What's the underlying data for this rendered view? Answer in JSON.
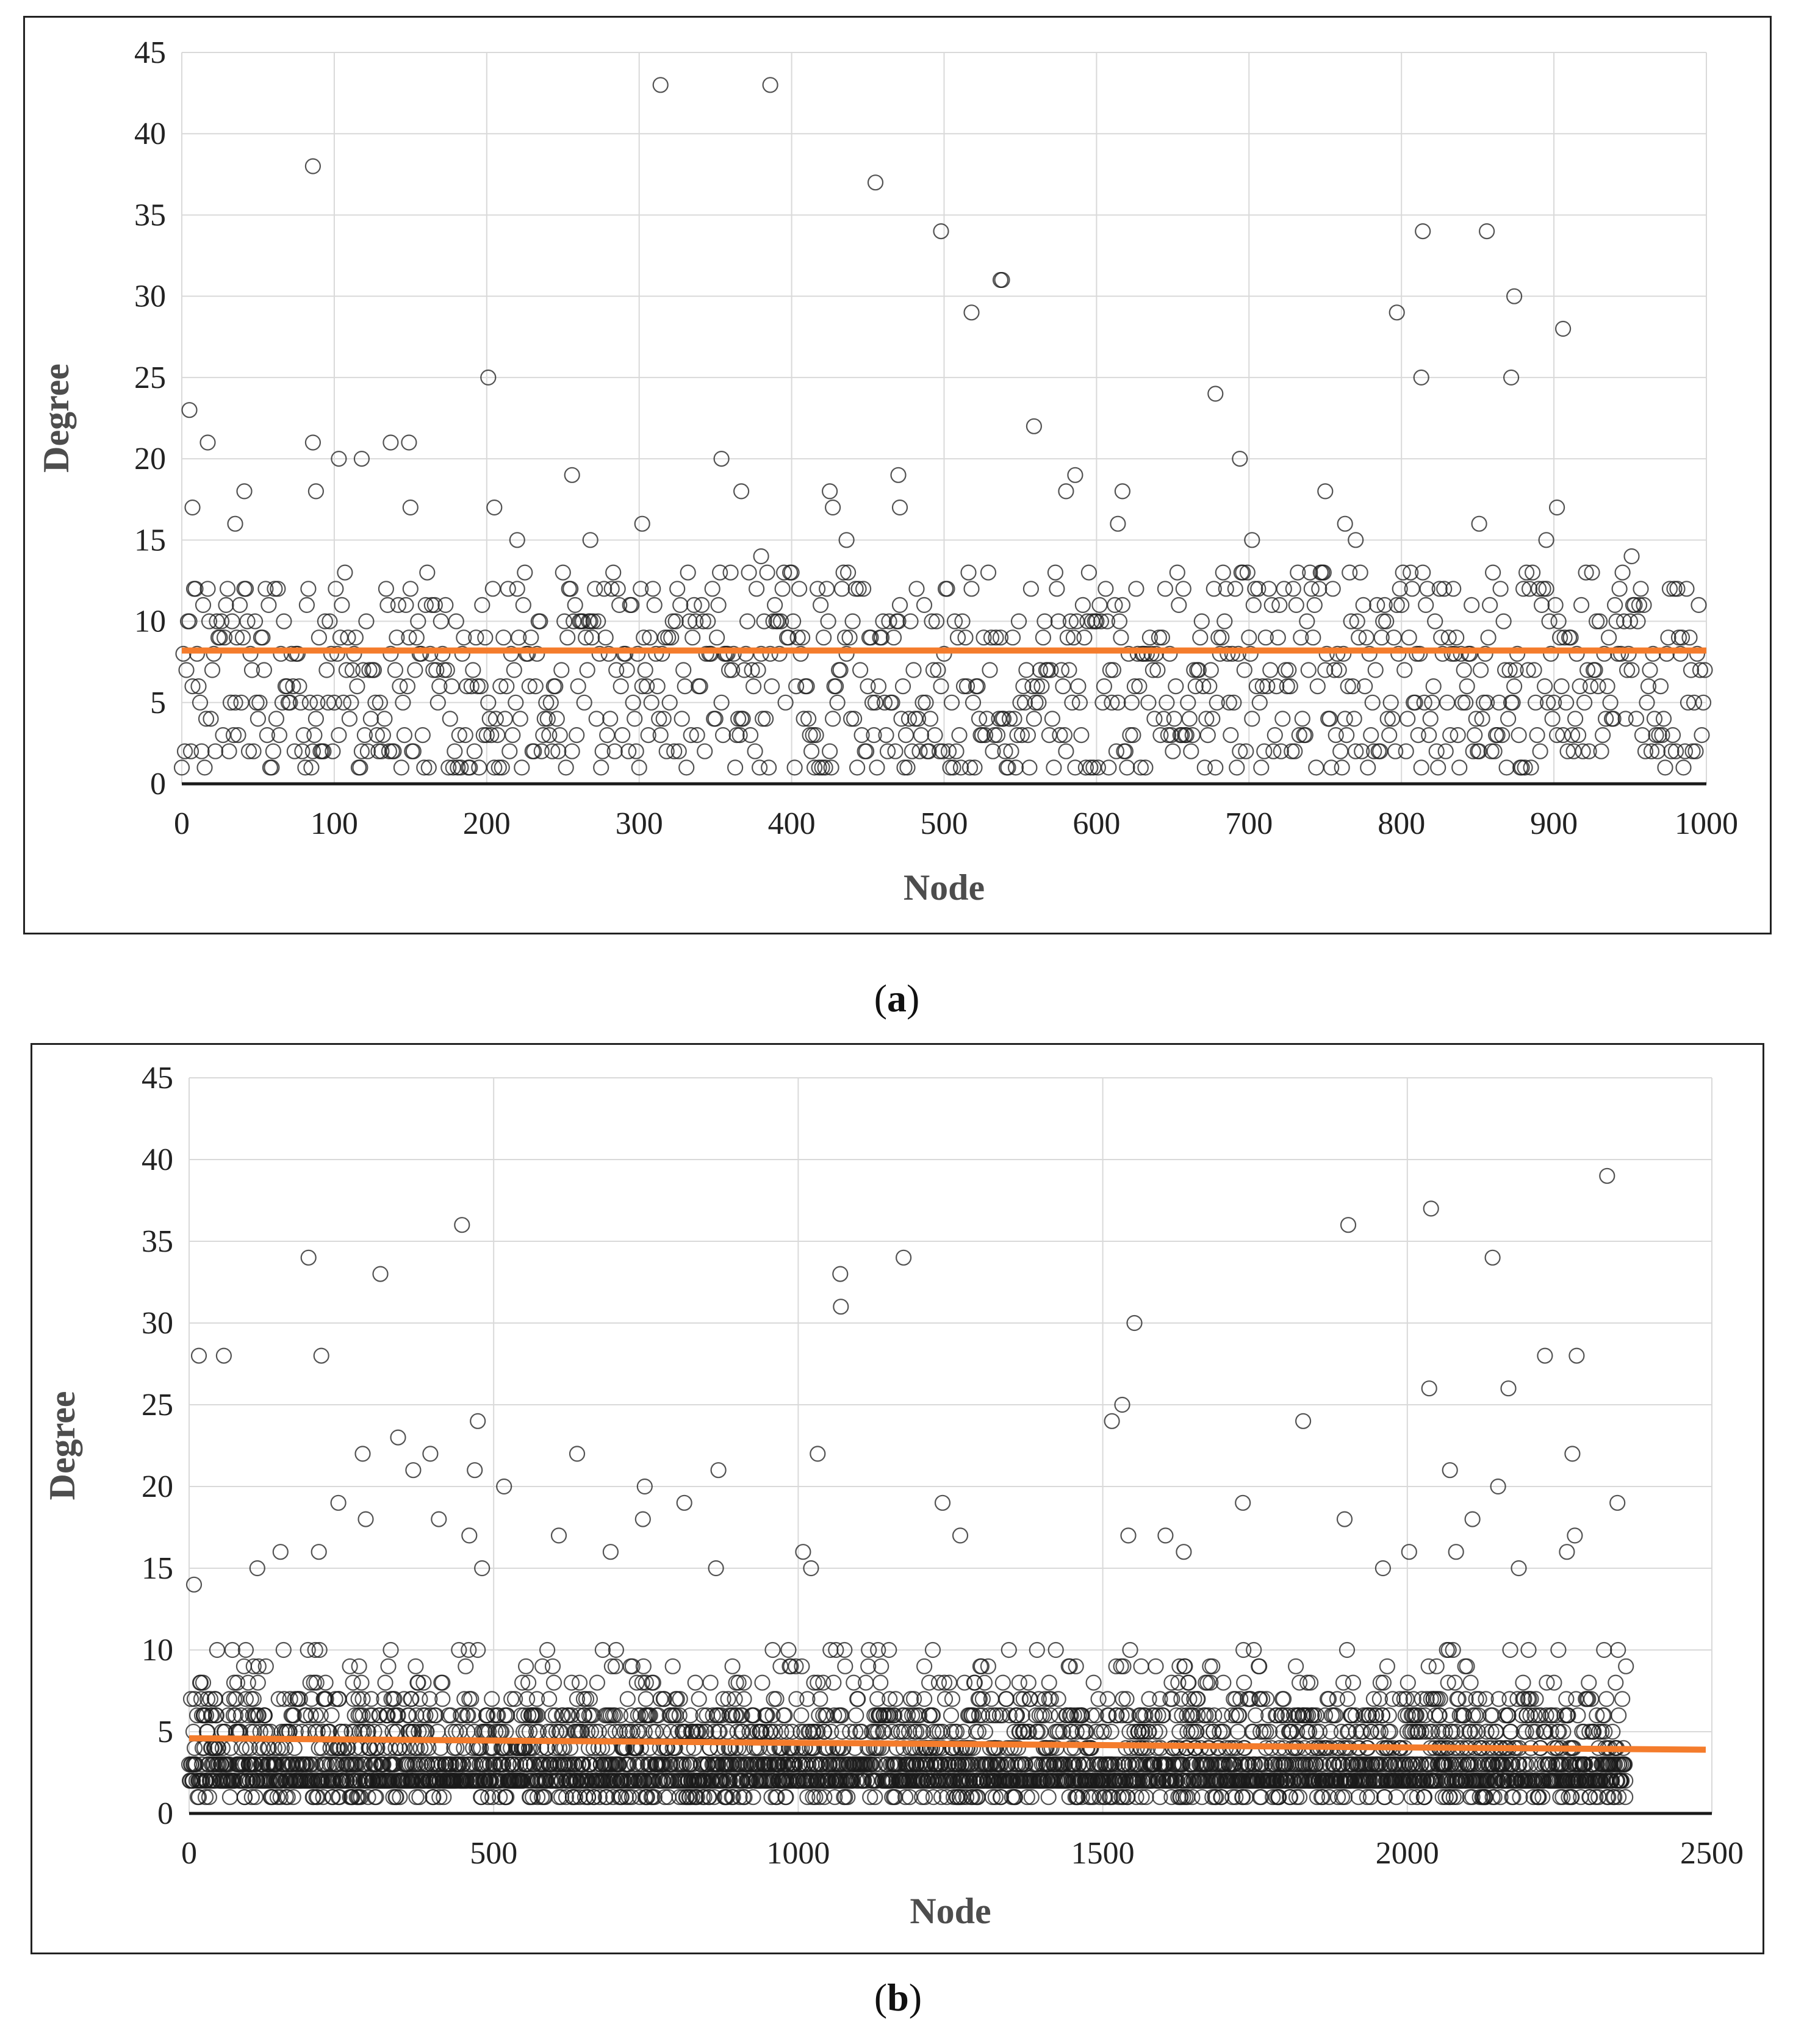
{
  "figure": {
    "panels": [
      {
        "label": "a",
        "caption_open": "(",
        "caption_close": ")"
      },
      {
        "label": "b",
        "caption_open": "(",
        "caption_close": ")"
      }
    ]
  },
  "colors": {
    "mean_line": "#f47c2c",
    "points": "#1a1a1a",
    "grid": "#d9d9d9"
  },
  "chart_data": [
    {
      "type": "scatter",
      "title": "",
      "xlabel": "Node",
      "ylabel": "Degree",
      "xlim": [
        0,
        1000
      ],
      "ylim": [
        0,
        45
      ],
      "xticks": [
        0,
        100,
        200,
        300,
        400,
        500,
        600,
        700,
        800,
        900,
        1000
      ],
      "yticks": [
        0,
        5,
        10,
        15,
        20,
        25,
        30,
        35,
        40,
        45
      ],
      "grid": true,
      "trend_line": {
        "name": "average degree",
        "x": [
          0,
          1000
        ],
        "y": [
          8.2,
          8.2
        ]
      },
      "bulk": {
        "n_nodes": 1000,
        "typical_range": [
          1,
          13
        ],
        "mean": 8.2
      },
      "outliers": [
        {
          "x": 5,
          "y": 23
        },
        {
          "x": 7,
          "y": 17
        },
        {
          "x": 17,
          "y": 21
        },
        {
          "x": 35,
          "y": 16
        },
        {
          "x": 41,
          "y": 18
        },
        {
          "x": 86,
          "y": 38
        },
        {
          "x": 86,
          "y": 21
        },
        {
          "x": 88,
          "y": 18
        },
        {
          "x": 103,
          "y": 20
        },
        {
          "x": 118,
          "y": 20
        },
        {
          "x": 137,
          "y": 21
        },
        {
          "x": 149,
          "y": 21
        },
        {
          "x": 150,
          "y": 17
        },
        {
          "x": 201,
          "y": 25
        },
        {
          "x": 205,
          "y": 17
        },
        {
          "x": 220,
          "y": 15
        },
        {
          "x": 256,
          "y": 19
        },
        {
          "x": 268,
          "y": 15
        },
        {
          "x": 302,
          "y": 16
        },
        {
          "x": 314,
          "y": 43
        },
        {
          "x": 354,
          "y": 20
        },
        {
          "x": 367,
          "y": 18
        },
        {
          "x": 386,
          "y": 43
        },
        {
          "x": 380,
          "y": 14
        },
        {
          "x": 425,
          "y": 18
        },
        {
          "x": 427,
          "y": 17
        },
        {
          "x": 436,
          "y": 15
        },
        {
          "x": 455,
          "y": 37
        },
        {
          "x": 470,
          "y": 19
        },
        {
          "x": 471,
          "y": 17
        },
        {
          "x": 498,
          "y": 34
        },
        {
          "x": 518,
          "y": 29
        },
        {
          "x": 537,
          "y": 31
        },
        {
          "x": 538,
          "y": 31
        },
        {
          "x": 559,
          "y": 22
        },
        {
          "x": 580,
          "y": 18
        },
        {
          "x": 586,
          "y": 19
        },
        {
          "x": 614,
          "y": 16
        },
        {
          "x": 617,
          "y": 18
        },
        {
          "x": 678,
          "y": 24
        },
        {
          "x": 694,
          "y": 20
        },
        {
          "x": 702,
          "y": 15
        },
        {
          "x": 750,
          "y": 18
        },
        {
          "x": 763,
          "y": 16
        },
        {
          "x": 770,
          "y": 15
        },
        {
          "x": 797,
          "y": 29
        },
        {
          "x": 814,
          "y": 34
        },
        {
          "x": 813,
          "y": 25
        },
        {
          "x": 856,
          "y": 34
        },
        {
          "x": 874,
          "y": 30
        },
        {
          "x": 872,
          "y": 25
        },
        {
          "x": 906,
          "y": 28
        },
        {
          "x": 902,
          "y": 17
        },
        {
          "x": 895,
          "y": 15
        },
        {
          "x": 851,
          "y": 16
        },
        {
          "x": 951,
          "y": 14
        }
      ]
    },
    {
      "type": "scatter",
      "title": "",
      "xlabel": "Node",
      "ylabel": "Degree",
      "xlim": [
        0,
        2500
      ],
      "ylim": [
        0,
        45
      ],
      "xticks": [
        0,
        500,
        1000,
        1500,
        2000,
        2500
      ],
      "yticks": [
        0,
        5,
        10,
        15,
        20,
        25,
        30,
        35,
        40,
        45
      ],
      "grid": true,
      "trend_line": {
        "name": "average degree",
        "x": [
          0,
          2490
        ],
        "y": [
          4.6,
          3.9
        ]
      },
      "bulk": {
        "n_nodes": 2360,
        "typical_range": [
          1,
          10
        ],
        "mean": 4.3
      },
      "outliers": [
        {
          "x": 8,
          "y": 14
        },
        {
          "x": 16,
          "y": 28
        },
        {
          "x": 57,
          "y": 28
        },
        {
          "x": 112,
          "y": 15
        },
        {
          "x": 150,
          "y": 16
        },
        {
          "x": 196,
          "y": 34
        },
        {
          "x": 217,
          "y": 28
        },
        {
          "x": 213,
          "y": 16
        },
        {
          "x": 245,
          "y": 19
        },
        {
          "x": 285,
          "y": 22
        },
        {
          "x": 290,
          "y": 18
        },
        {
          "x": 314,
          "y": 33
        },
        {
          "x": 343,
          "y": 23
        },
        {
          "x": 368,
          "y": 21
        },
        {
          "x": 396,
          "y": 22
        },
        {
          "x": 410,
          "y": 18
        },
        {
          "x": 448,
          "y": 36
        },
        {
          "x": 474,
          "y": 24
        },
        {
          "x": 469,
          "y": 21
        },
        {
          "x": 460,
          "y": 17
        },
        {
          "x": 481,
          "y": 15
        },
        {
          "x": 517,
          "y": 20
        },
        {
          "x": 607,
          "y": 17
        },
        {
          "x": 637,
          "y": 22
        },
        {
          "x": 692,
          "y": 16
        },
        {
          "x": 748,
          "y": 20
        },
        {
          "x": 745,
          "y": 18
        },
        {
          "x": 813,
          "y": 19
        },
        {
          "x": 869,
          "y": 21
        },
        {
          "x": 865,
          "y": 15
        },
        {
          "x": 1008,
          "y": 16
        },
        {
          "x": 1021,
          "y": 15
        },
        {
          "x": 1032,
          "y": 22
        },
        {
          "x": 1069,
          "y": 33
        },
        {
          "x": 1070,
          "y": 31
        },
        {
          "x": 1173,
          "y": 34
        },
        {
          "x": 1237,
          "y": 19
        },
        {
          "x": 1266,
          "y": 17
        },
        {
          "x": 1515,
          "y": 24
        },
        {
          "x": 1532,
          "y": 25
        },
        {
          "x": 1552,
          "y": 30
        },
        {
          "x": 1542,
          "y": 17
        },
        {
          "x": 1603,
          "y": 17
        },
        {
          "x": 1633,
          "y": 16
        },
        {
          "x": 1730,
          "y": 19
        },
        {
          "x": 1829,
          "y": 24
        },
        {
          "x": 1897,
          "y": 18
        },
        {
          "x": 1903,
          "y": 36
        },
        {
          "x": 1960,
          "y": 15
        },
        {
          "x": 2003,
          "y": 16
        },
        {
          "x": 2039,
          "y": 37
        },
        {
          "x": 2036,
          "y": 26
        },
        {
          "x": 2070,
          "y": 21
        },
        {
          "x": 2107,
          "y": 18
        },
        {
          "x": 2140,
          "y": 34
        },
        {
          "x": 2149,
          "y": 20
        },
        {
          "x": 2166,
          "y": 26
        },
        {
          "x": 2226,
          "y": 28
        },
        {
          "x": 2278,
          "y": 28
        },
        {
          "x": 2271,
          "y": 22
        },
        {
          "x": 2275,
          "y": 17
        },
        {
          "x": 2262,
          "y": 16
        },
        {
          "x": 2328,
          "y": 39
        },
        {
          "x": 2345,
          "y": 19
        },
        {
          "x": 2080,
          "y": 16
        },
        {
          "x": 2183,
          "y": 15
        }
      ]
    }
  ]
}
